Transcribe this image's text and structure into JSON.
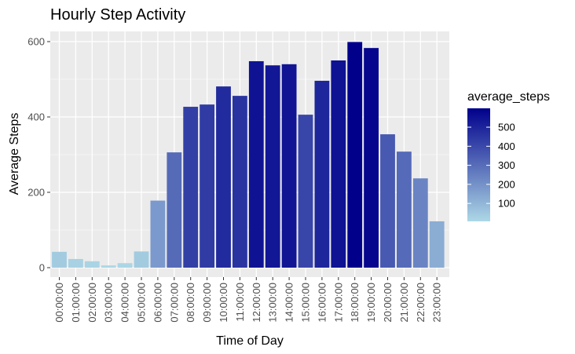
{
  "chart_data": {
    "type": "bar",
    "title": "Hourly Step Activity",
    "xlabel": "Time of Day",
    "ylabel": "Average Steps",
    "categories": [
      "00:00:00",
      "01:00:00",
      "02:00:00",
      "03:00:00",
      "04:00:00",
      "05:00:00",
      "06:00:00",
      "07:00:00",
      "08:00:00",
      "09:00:00",
      "10:00:00",
      "11:00:00",
      "12:00:00",
      "13:00:00",
      "14:00:00",
      "15:00:00",
      "16:00:00",
      "17:00:00",
      "18:00:00",
      "19:00:00",
      "20:00:00",
      "21:00:00",
      "22:00:00",
      "23:00:00"
    ],
    "values": [
      42,
      23,
      17,
      6,
      12,
      43,
      178,
      306,
      427,
      433,
      481,
      456,
      548,
      537,
      540,
      406,
      496,
      550,
      599,
      583,
      354,
      308,
      237,
      123
    ],
    "ylim": [
      0,
      630
    ],
    "yticks": [
      0,
      200,
      400,
      600
    ],
    "grid": true,
    "legend": {
      "title": "average_steps",
      "placement": "right",
      "breaks": [
        100,
        200,
        300,
        400,
        500
      ],
      "range": [
        6,
        599
      ],
      "color_low": "#add8e6",
      "color_high": "#00008b"
    },
    "colors": {
      "panel_background": "#ebebeb",
      "grid_major": "#ffffff"
    }
  }
}
